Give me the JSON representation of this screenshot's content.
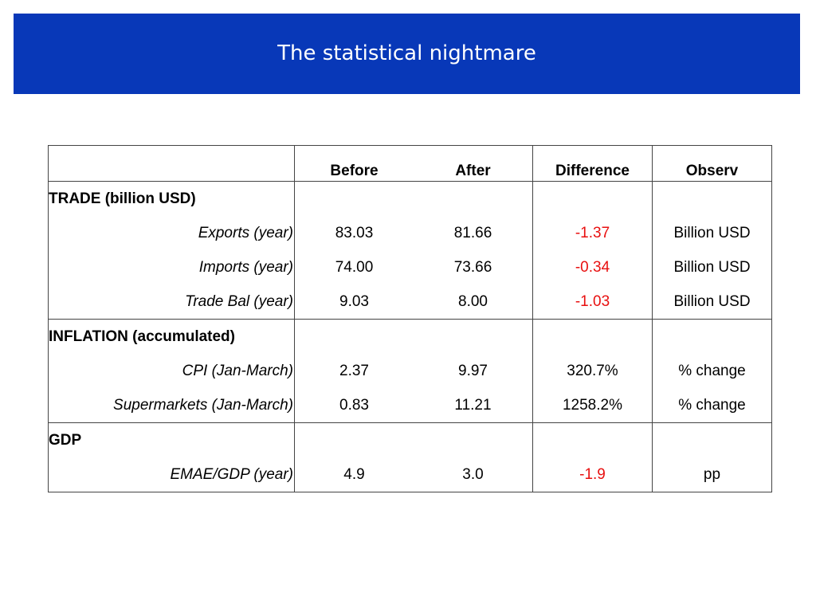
{
  "title": "The statistical nightmare",
  "colors": {
    "title_bar": "#0838b8",
    "negative": "#e81010"
  },
  "table": {
    "headers": [
      "",
      "Before",
      "After",
      "Difference",
      "Observ"
    ],
    "sections": [
      {
        "name": "TRADE (billion USD)",
        "rows": [
          {
            "label": "Exports (year)",
            "before": "83.03",
            "after": "81.66",
            "difference": "-1.37",
            "observ": "Billion USD"
          },
          {
            "label": "Imports (year)",
            "before": "74.00",
            "after": "73.66",
            "difference": "-0.34",
            "observ": "Billion USD"
          },
          {
            "label": "Trade Bal (year)",
            "before": "9.03",
            "after": "8.00",
            "difference": "-1.03",
            "observ": "Billion USD"
          }
        ]
      },
      {
        "name": "INFLATION (accumulated)",
        "rows": [
          {
            "label": "CPI (Jan-March)",
            "before": "2.37",
            "after": "9.97",
            "difference": "320.7%",
            "observ": "% change"
          },
          {
            "label": "Supermarkets (Jan-March)",
            "before": "0.83",
            "after": "11.21",
            "difference": "1258.2%",
            "observ": "% change"
          }
        ]
      },
      {
        "name": "GDP",
        "rows": [
          {
            "label": "EMAE/GDP (year)",
            "before": "4.9",
            "after": "3.0",
            "difference": "-1.9",
            "observ": "pp"
          }
        ]
      }
    ]
  }
}
